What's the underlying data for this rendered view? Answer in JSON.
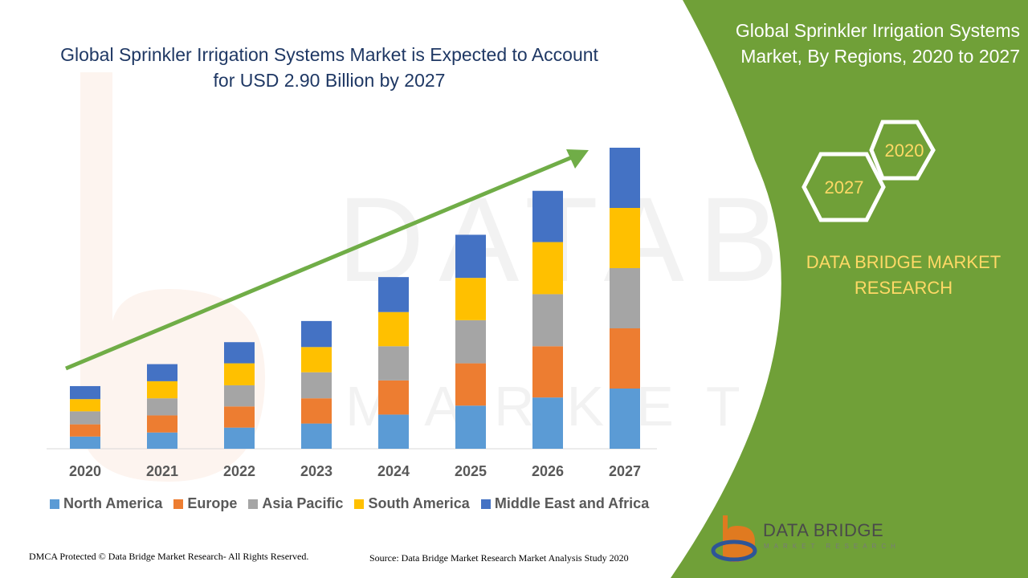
{
  "headline": "Global Sprinkler Irrigation Systems Market is Expected to Account for USD 2.90 Billion by 2027",
  "panel": {
    "title": "Global Sprinkler Irrigation Systems Market, By Regions, 2020 to 2027",
    "hex_2020": "2020",
    "hex_2027": "2027",
    "brand_text": "DATA BRIDGE MARKET RESEARCH"
  },
  "footer": {
    "left": "DMCA Protected © Data Bridge Market Research- All Rights Reserved.",
    "right": "Source: Data Bridge Market Research Market Analysis Study 2020"
  },
  "logo": {
    "label": "DATA BRIDGE",
    "sublabel": "MARKET RESEARCH"
  },
  "colors": {
    "green_panel": "#70a038",
    "headline": "#1f3864",
    "hex_text": "#ffd966",
    "arrow": "#70ad47"
  },
  "chart_data": {
    "type": "bar",
    "stacked": true,
    "title": "",
    "xlabel": "",
    "ylabel": "",
    "categories": [
      "2020",
      "2021",
      "2022",
      "2023",
      "2024",
      "2025",
      "2026",
      "2027"
    ],
    "ylim": [
      0,
      7.4
    ],
    "grid": false,
    "legend_position": "bottom",
    "series": [
      {
        "name": "North America",
        "color": "#5b9bd5",
        "values": [
          0.3,
          0.4,
          0.52,
          0.62,
          0.84,
          1.06,
          1.26,
          1.48
        ]
      },
      {
        "name": "Europe",
        "color": "#ed7d31",
        "values": [
          0.3,
          0.42,
          0.52,
          0.62,
          0.84,
          1.04,
          1.26,
          1.48
        ]
      },
      {
        "name": "Asia Pacific",
        "color": "#a5a5a5",
        "values": [
          0.32,
          0.42,
          0.52,
          0.64,
          0.84,
          1.06,
          1.28,
          1.48
        ]
      },
      {
        "name": "South America",
        "color": "#ffc000",
        "values": [
          0.3,
          0.42,
          0.54,
          0.62,
          0.84,
          1.04,
          1.28,
          1.48
        ]
      },
      {
        "name": "Middle East and Africa",
        "color": "#4472c4",
        "values": [
          0.32,
          0.42,
          0.52,
          0.64,
          0.86,
          1.06,
          1.26,
          1.48
        ]
      }
    ]
  }
}
